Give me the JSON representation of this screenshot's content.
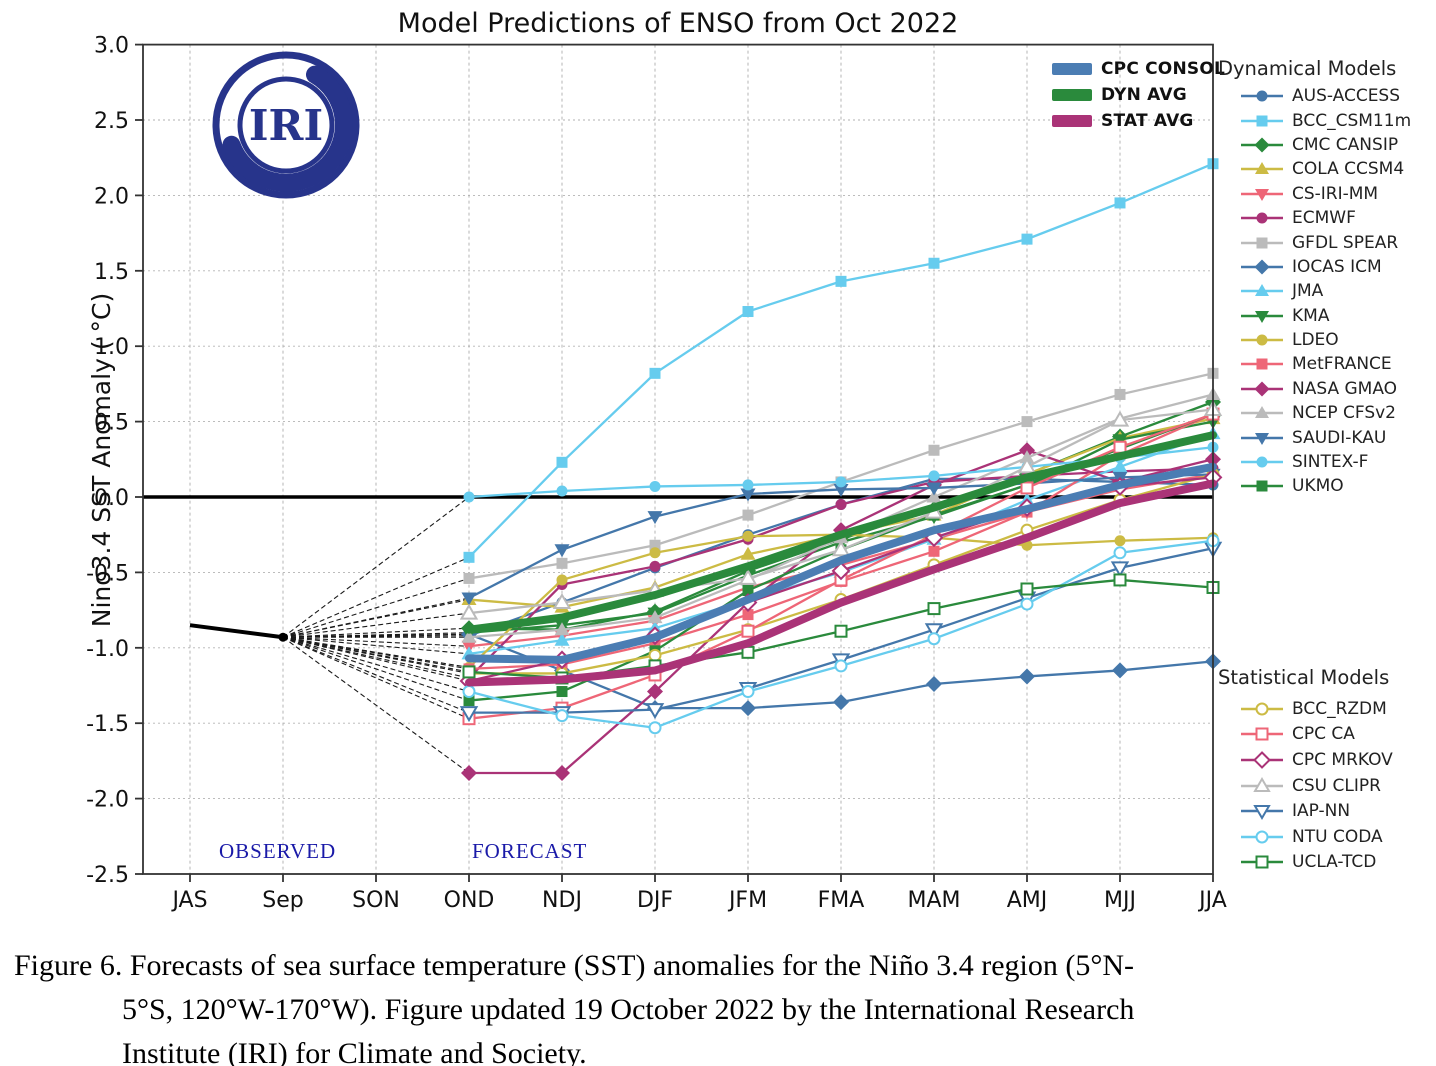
{
  "title": "Model Predictions of ENSO from Oct 2022",
  "logo": {
    "text": "IRI"
  },
  "right_panel": {
    "dynamical_header": "Dynamical Models",
    "statistical_header": "Statistical Models"
  },
  "caption": {
    "line1": "Figure 6. Forecasts of sea surface temperature (SST) anomalies  for the Niño 3.4 region (5°N-",
    "line2": "5°S, 120°W-170°W).  Figure  updated 19 October 2022 by the International Research",
    "line3": "Institute  (IRI) for Climate  and Society."
  },
  "chart_data": {
    "type": "line",
    "title": "Model Predictions of ENSO from Oct 2022",
    "xlabel": "",
    "ylabel": "Nino3.4 SST Anomaly ( °C)",
    "x_categories": [
      "JAS",
      "Sep",
      "SON",
      "OND",
      "NDJ",
      "DJF",
      "JFM",
      "FMA",
      "MAM",
      "AMJ",
      "MJJ",
      "JJA"
    ],
    "ylim": [
      -2.5,
      3.0
    ],
    "y_tick_step": 0.5,
    "grid": true,
    "forecast_start_index": 3,
    "annotations": {
      "observed_label": "OBSERVED",
      "forecast_label": "FORECAST"
    },
    "observed": {
      "categories": [
        "JAS",
        "Sep"
      ],
      "values": [
        -0.85,
        -0.93
      ],
      "color": "#000000"
    },
    "avg_series": [
      {
        "name": "CPC CONSOL",
        "color": "#4B7DB3",
        "values": [
          -1.07,
          -1.08,
          -0.93,
          -0.68,
          -0.42,
          -0.22,
          -0.08,
          0.08,
          0.2
        ]
      },
      {
        "name": "DYN AVG",
        "color": "#2A8A3C",
        "values": [
          -0.88,
          -0.8,
          -0.65,
          -0.46,
          -0.25,
          -0.07,
          0.13,
          0.27,
          0.41
        ]
      },
      {
        "name": "STAT AVG",
        "color": "#AA3377",
        "values": [
          -1.23,
          -1.21,
          -1.15,
          -0.97,
          -0.7,
          -0.48,
          -0.27,
          -0.04,
          0.09
        ]
      }
    ],
    "dynamical_models": [
      {
        "name": "AUS-ACCESS",
        "color": "#4477AA",
        "marker": "circle",
        "fill": "filled",
        "values": [
          -0.92,
          -0.7,
          -0.47,
          -0.25,
          -0.05,
          0.12,
          0.12,
          0.1,
          0.08
        ]
      },
      {
        "name": "BCC_CSM11m",
        "color": "#66CCEE",
        "marker": "square",
        "fill": "filled",
        "values": [
          -0.4,
          0.23,
          0.82,
          1.23,
          1.43,
          1.55,
          1.71,
          1.95,
          2.21
        ]
      },
      {
        "name": "CMC CANSIP",
        "color": "#2A8A3C",
        "marker": "diamond",
        "fill": "filled",
        "values": [
          -0.87,
          -0.88,
          -0.76,
          -0.49,
          -0.28,
          -0.08,
          0.15,
          0.4,
          0.63
        ]
      },
      {
        "name": "COLA CCSM4",
        "color": "#CCBB44",
        "marker": "triangle-up",
        "fill": "filled",
        "values": [
          -0.68,
          -0.73,
          -0.6,
          -0.38,
          -0.25,
          -0.12,
          0.15,
          0.39,
          0.52
        ]
      },
      {
        "name": "CS-IRI-MM",
        "color": "#EE6677",
        "marker": "triangle-down",
        "fill": "filled",
        "values": [
          -0.99,
          -0.92,
          -0.82,
          -0.6,
          -0.45,
          -0.28,
          -0.1,
          0.05,
          0.15
        ]
      },
      {
        "name": "ECMWF",
        "color": "#AA3377",
        "marker": "circle",
        "fill": "filled",
        "values": [
          -1.2,
          -0.58,
          -0.46,
          -0.28,
          -0.05,
          0.1,
          0.14,
          0.17,
          0.19
        ]
      },
      {
        "name": "GFDL SPEAR",
        "color": "#BBBBBB",
        "marker": "square",
        "fill": "filled",
        "values": [
          -0.54,
          -0.44,
          -0.32,
          -0.12,
          0.1,
          0.31,
          0.5,
          0.68,
          0.82
        ]
      },
      {
        "name": "IOCAS ICM",
        "color": "#4477AA",
        "marker": "diamond",
        "fill": "filled",
        "values": [
          -0.91,
          -1.15,
          -1.4,
          -1.4,
          -1.36,
          -1.24,
          -1.19,
          -1.15,
          -1.09
        ]
      },
      {
        "name": "JMA",
        "color": "#66CCEE",
        "marker": "triangle-up",
        "fill": "filled",
        "values": [
          -1.04,
          -0.95,
          -0.87,
          -0.68,
          -0.5,
          -0.28,
          -0.02,
          0.2,
          0.42
        ]
      },
      {
        "name": "KMA",
        "color": "#2A8A3C",
        "marker": "triangle-down",
        "fill": "filled",
        "values": [
          -0.9,
          -0.85,
          -0.77,
          -0.52,
          -0.3,
          -0.13,
          0.08,
          0.38,
          0.5
        ]
      },
      {
        "name": "LDEO",
        "color": "#CCBB44",
        "marker": "circle",
        "fill": "filled",
        "values": [
          -1.13,
          -0.55,
          -0.37,
          -0.26,
          -0.25,
          -0.27,
          -0.32,
          -0.29,
          -0.27
        ]
      },
      {
        "name": "MetFRANCE",
        "color": "#EE6677",
        "marker": "square",
        "fill": "filled",
        "values": [
          -1.14,
          -1.11,
          -0.97,
          -0.78,
          -0.56,
          -0.36,
          -0.1,
          0.28,
          0.55
        ]
      },
      {
        "name": "NASA GMAO",
        "color": "#AA3377",
        "marker": "diamond",
        "fill": "filled",
        "values": [
          -1.83,
          -1.83,
          -1.29,
          -0.7,
          -0.22,
          0.08,
          0.31,
          0.1,
          0.25
        ]
      },
      {
        "name": "NCEP CFSv2",
        "color": "#BBBBBB",
        "marker": "triangle-up",
        "fill": "filled",
        "values": [
          -0.93,
          -0.88,
          -0.8,
          -0.55,
          -0.27,
          0.0,
          0.26,
          0.52,
          0.68
        ]
      },
      {
        "name": "SAUDI-KAU",
        "color": "#4477AA",
        "marker": "triangle-down",
        "fill": "filled",
        "values": [
          -0.67,
          -0.35,
          -0.13,
          0.02,
          0.05,
          0.06,
          0.09,
          0.13,
          0.15
        ]
      },
      {
        "name": "SINTEX-F",
        "color": "#66CCEE",
        "marker": "circle",
        "fill": "filled",
        "values": [
          0.0,
          0.04,
          0.07,
          0.08,
          0.1,
          0.14,
          0.2,
          0.26,
          0.33
        ]
      },
      {
        "name": "UKMO",
        "color": "#2A8A3C",
        "marker": "square",
        "fill": "filled",
        "values": [
          -1.35,
          -1.29,
          -1.02,
          -0.62,
          -0.35,
          -0.12,
          0.08,
          0.32,
          0.55
        ]
      }
    ],
    "statistical_models": [
      {
        "name": "BCC_RZDM",
        "color": "#CCBB44",
        "marker": "circle",
        "fill": "open",
        "values": [
          -1.17,
          -1.17,
          -1.05,
          -0.88,
          -0.68,
          -0.45,
          -0.22,
          -0.02,
          0.15
        ]
      },
      {
        "name": "CPC CA",
        "color": "#EE6677",
        "marker": "square",
        "fill": "open",
        "values": [
          -1.47,
          -1.4,
          -1.18,
          -0.89,
          -0.55,
          -0.25,
          0.06,
          0.33,
          0.55
        ]
      },
      {
        "name": "CPC MRKOV",
        "color": "#AA3377",
        "marker": "diamond",
        "fill": "open",
        "values": [
          -1.22,
          -1.08,
          -0.92,
          -0.7,
          -0.49,
          -0.27,
          -0.07,
          0.07,
          0.13
        ]
      },
      {
        "name": "CSU CLIPR",
        "color": "#BBBBBB",
        "marker": "triangle-up",
        "fill": "open",
        "values": [
          -0.77,
          -0.7,
          -0.62,
          -0.54,
          -0.35,
          -0.1,
          0.2,
          0.51,
          0.58
        ]
      },
      {
        "name": "IAP-NN",
        "color": "#4477AA",
        "marker": "triangle-down",
        "fill": "open",
        "values": [
          -1.43,
          -1.43,
          -1.41,
          -1.27,
          -1.08,
          -0.88,
          -0.67,
          -0.47,
          -0.34
        ]
      },
      {
        "name": "NTU CODA",
        "color": "#66CCEE",
        "marker": "circle",
        "fill": "open",
        "values": [
          -1.29,
          -1.45,
          -1.53,
          -1.29,
          -1.12,
          -0.94,
          -0.71,
          -0.37,
          -0.29
        ]
      },
      {
        "name": "UCLA-TCD",
        "color": "#2A8A3C",
        "marker": "square",
        "fill": "open",
        "values": [
          -1.16,
          -1.2,
          -1.12,
          -1.03,
          -0.89,
          -0.74,
          -0.61,
          -0.55,
          -0.6
        ]
      }
    ]
  }
}
